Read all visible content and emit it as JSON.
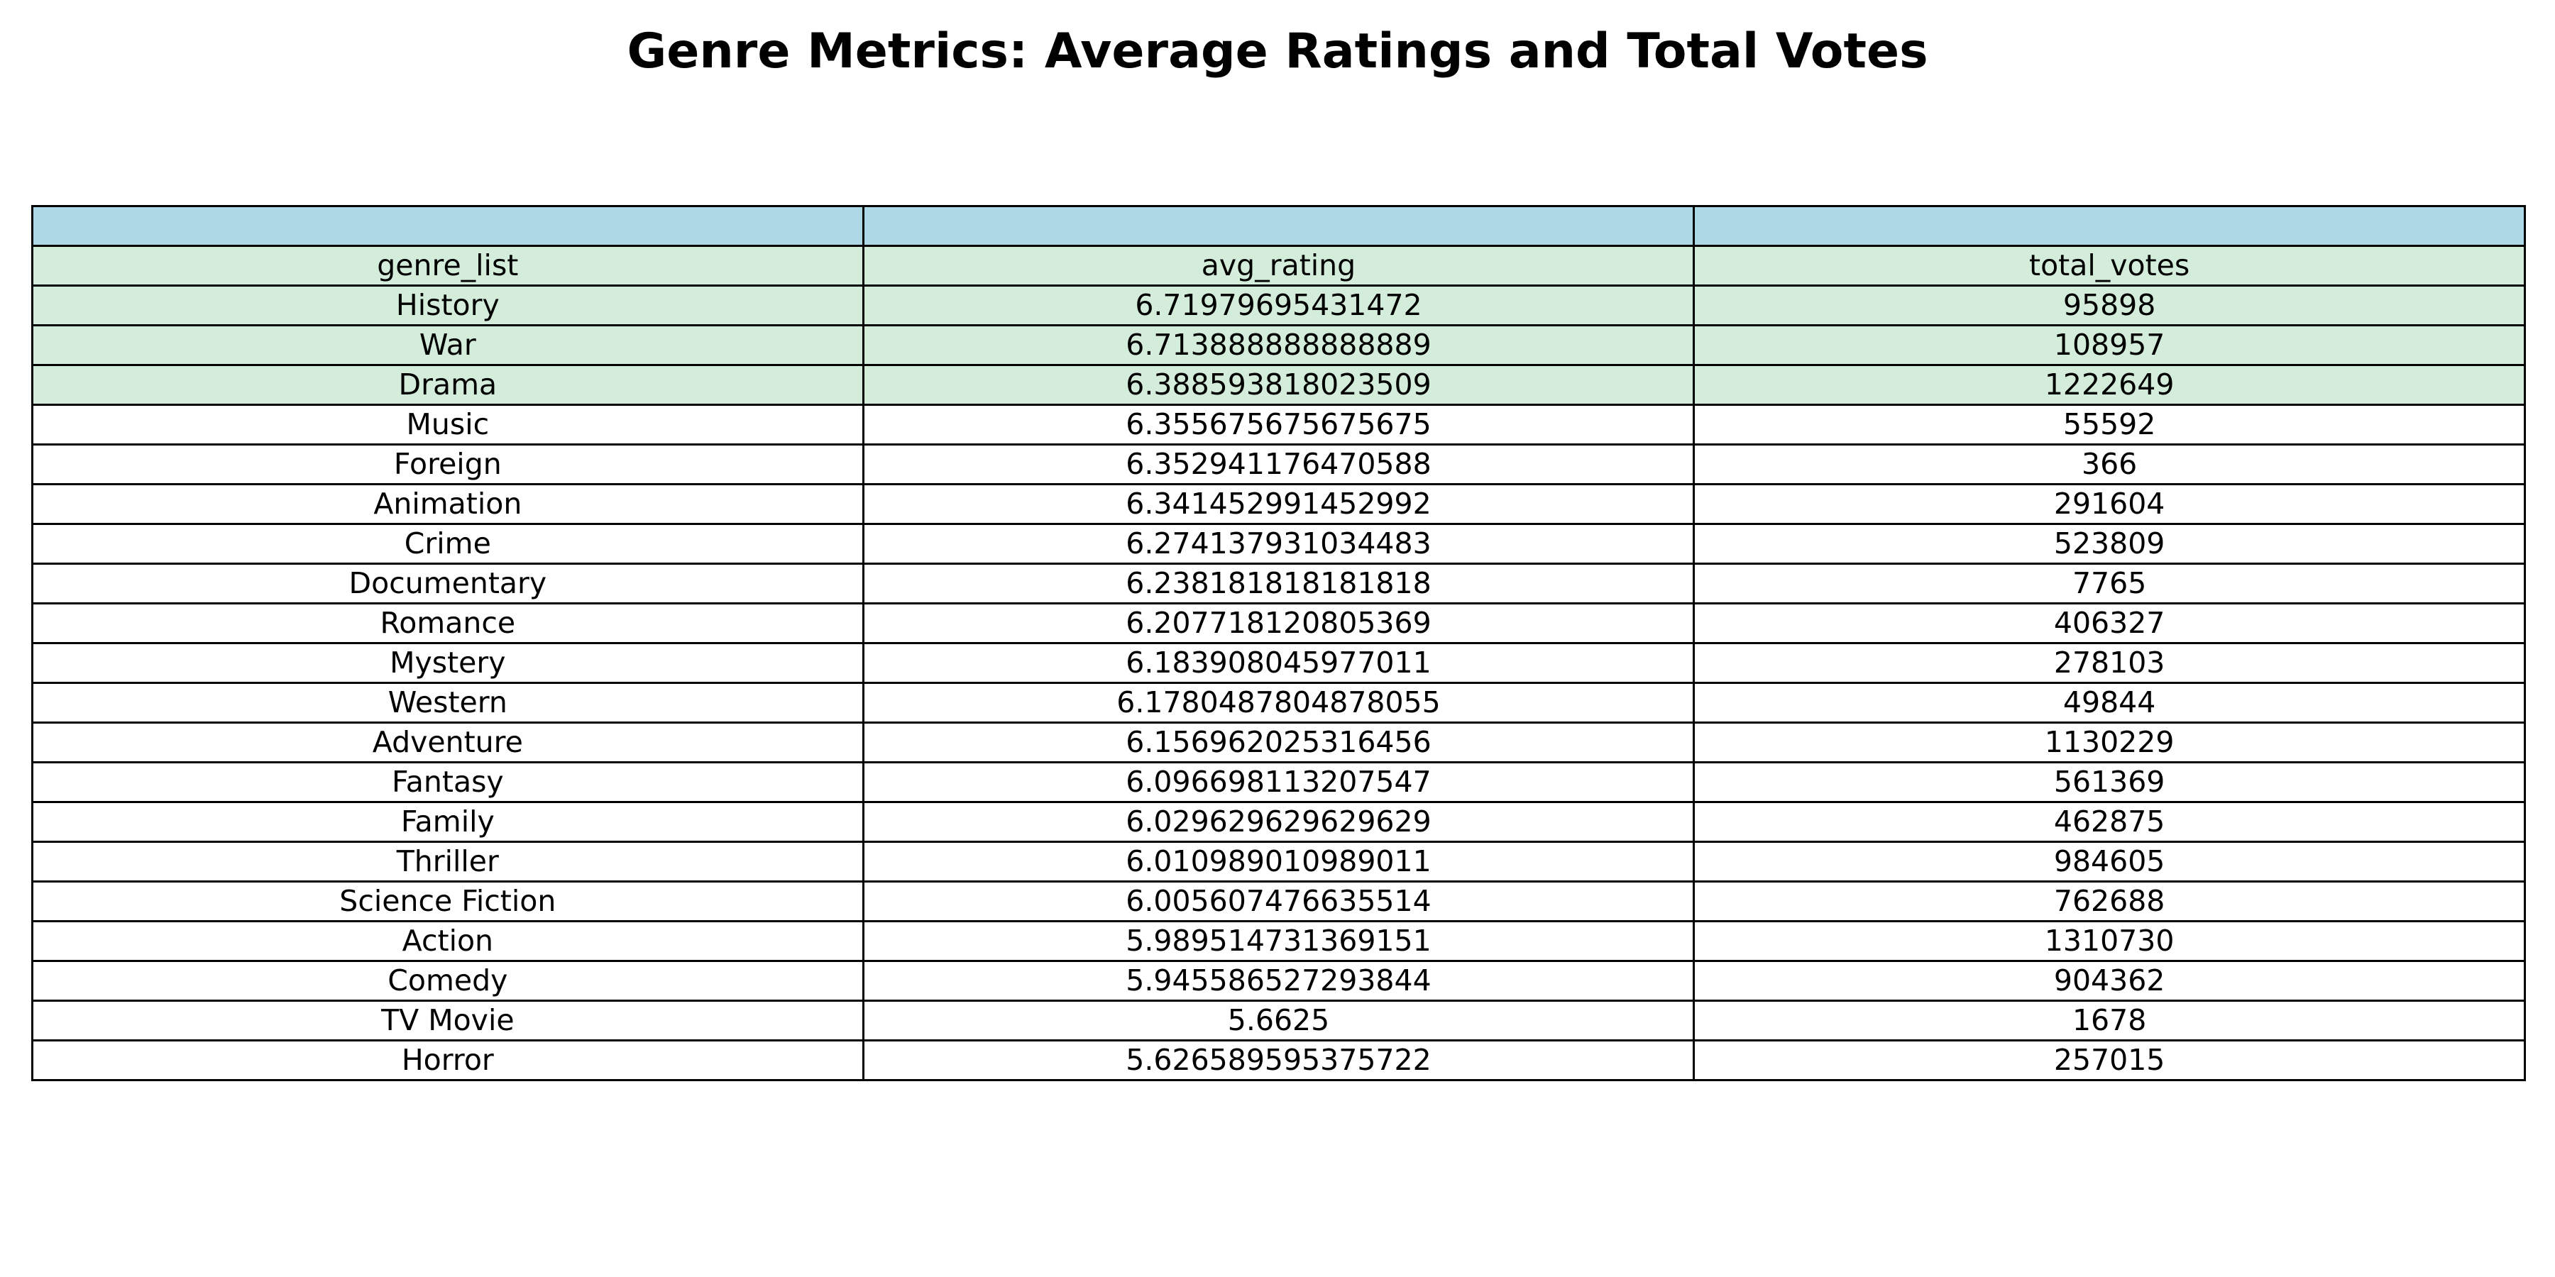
{
  "chart_data": {
    "type": "table",
    "title": "Genre Metrics: Average Ratings and Total Votes",
    "header_color": "#add8e6",
    "highlight_color": "#d4edda",
    "highlight_row_count": 3,
    "columns": [
      "genre_list",
      "avg_rating",
      "total_votes"
    ],
    "rows": [
      [
        "History",
        "6.71979695431472",
        "95898"
      ],
      [
        "War",
        "6.713888888888889",
        "108957"
      ],
      [
        "Drama",
        "6.388593818023509",
        "1222649"
      ],
      [
        "Music",
        "6.355675675675675",
        "55592"
      ],
      [
        "Foreign",
        "6.352941176470588",
        "366"
      ],
      [
        "Animation",
        "6.341452991452992",
        "291604"
      ],
      [
        "Crime",
        "6.274137931034483",
        "523809"
      ],
      [
        "Documentary",
        "6.238181818181818",
        "7765"
      ],
      [
        "Romance",
        "6.207718120805369",
        "406327"
      ],
      [
        "Mystery",
        "6.183908045977011",
        "278103"
      ],
      [
        "Western",
        "6.1780487804878055",
        "49844"
      ],
      [
        "Adventure",
        "6.156962025316456",
        "1130229"
      ],
      [
        "Fantasy",
        "6.096698113207547",
        "561369"
      ],
      [
        "Family",
        "6.029629629629629",
        "462875"
      ],
      [
        "Thriller",
        "6.010989010989011",
        "984605"
      ],
      [
        "Science Fiction",
        "6.005607476635514",
        "762688"
      ],
      [
        "Action",
        "5.989514731369151",
        "1310730"
      ],
      [
        "Comedy",
        "5.945586527293844",
        "904362"
      ],
      [
        "TV Movie",
        "5.6625",
        "1678"
      ],
      [
        "Horror",
        "5.626589595375722",
        "257015"
      ]
    ]
  }
}
